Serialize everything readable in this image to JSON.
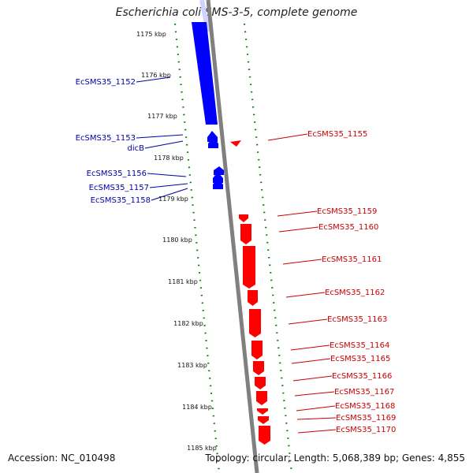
{
  "title": "Escherichia coli SMS-3-5, complete genome",
  "footer": {
    "accession": "Accession: NC_010498",
    "summary": "Topology: circular; Length: 5,068,389 bp; Genes: 4,855"
  },
  "colors": {
    "forward": "#0000ff",
    "reverse": "#ff0000",
    "backbone": "#808080",
    "ticks": "#008000",
    "forward_label": "#0000a8",
    "reverse_label": "#cc0000"
  },
  "kbp_ticks": [
    "1175 kbp",
    "1176 kbp",
    "1177 kbp",
    "1178 kbp",
    "1179 kbp",
    "1180 kbp",
    "1181 kbp",
    "1182 kbp",
    "1183 kbp",
    "1184 kbp",
    "1185 kbp"
  ],
  "forward_genes": [
    "EcSMS35_1152",
    "EcSMS35_1153",
    "dicB",
    "EcSMS35_1156",
    "EcSMS35_1157",
    "EcSMS35_1158"
  ],
  "reverse_genes": [
    "EcSMS35_1155",
    "EcSMS35_1159",
    "EcSMS35_1160",
    "EcSMS35_1161",
    "EcSMS35_1162",
    "EcSMS35_1163",
    "EcSMS35_1164",
    "EcSMS35_1165",
    "EcSMS35_1166",
    "EcSMS35_1167",
    "EcSMS35_1168",
    "EcSMS35_1169",
    "EcSMS35_1170"
  ]
}
